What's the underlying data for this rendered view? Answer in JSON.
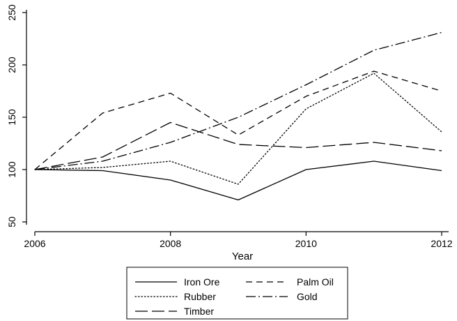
{
  "chart_data": {
    "type": "line",
    "title": "",
    "xlabel": "Year",
    "ylabel": "",
    "x": [
      2006,
      2007,
      2008,
      2009,
      2010,
      2011,
      2012
    ],
    "xticks": [
      "2006",
      "2008",
      "2010",
      "2012"
    ],
    "yticks": [
      "50",
      "100",
      "150",
      "200",
      "250"
    ],
    "xlim": [
      2006,
      2012
    ],
    "ylim": [
      50,
      250
    ],
    "grid": false,
    "legend_position": "bottom",
    "series": [
      {
        "name": "Iron Ore",
        "style": "solid",
        "values": [
          100,
          99,
          90,
          71,
          100,
          108,
          99
        ]
      },
      {
        "name": "Palm Oil",
        "style": "dash",
        "values": [
          100,
          154,
          173,
          133,
          170,
          194,
          175
        ]
      },
      {
        "name": "Rubber",
        "style": "dot",
        "values": [
          100,
          102,
          108,
          86,
          158,
          192,
          136
        ]
      },
      {
        "name": "Gold",
        "style": "dashdot",
        "values": [
          100,
          108,
          126,
          150,
          181,
          214,
          231
        ]
      },
      {
        "name": "Timber",
        "style": "longdash",
        "values": [
          100,
          112,
          145,
          124,
          121,
          126,
          118
        ]
      }
    ],
    "colors": {
      "line": "#000000",
      "axis": "#000000"
    }
  }
}
